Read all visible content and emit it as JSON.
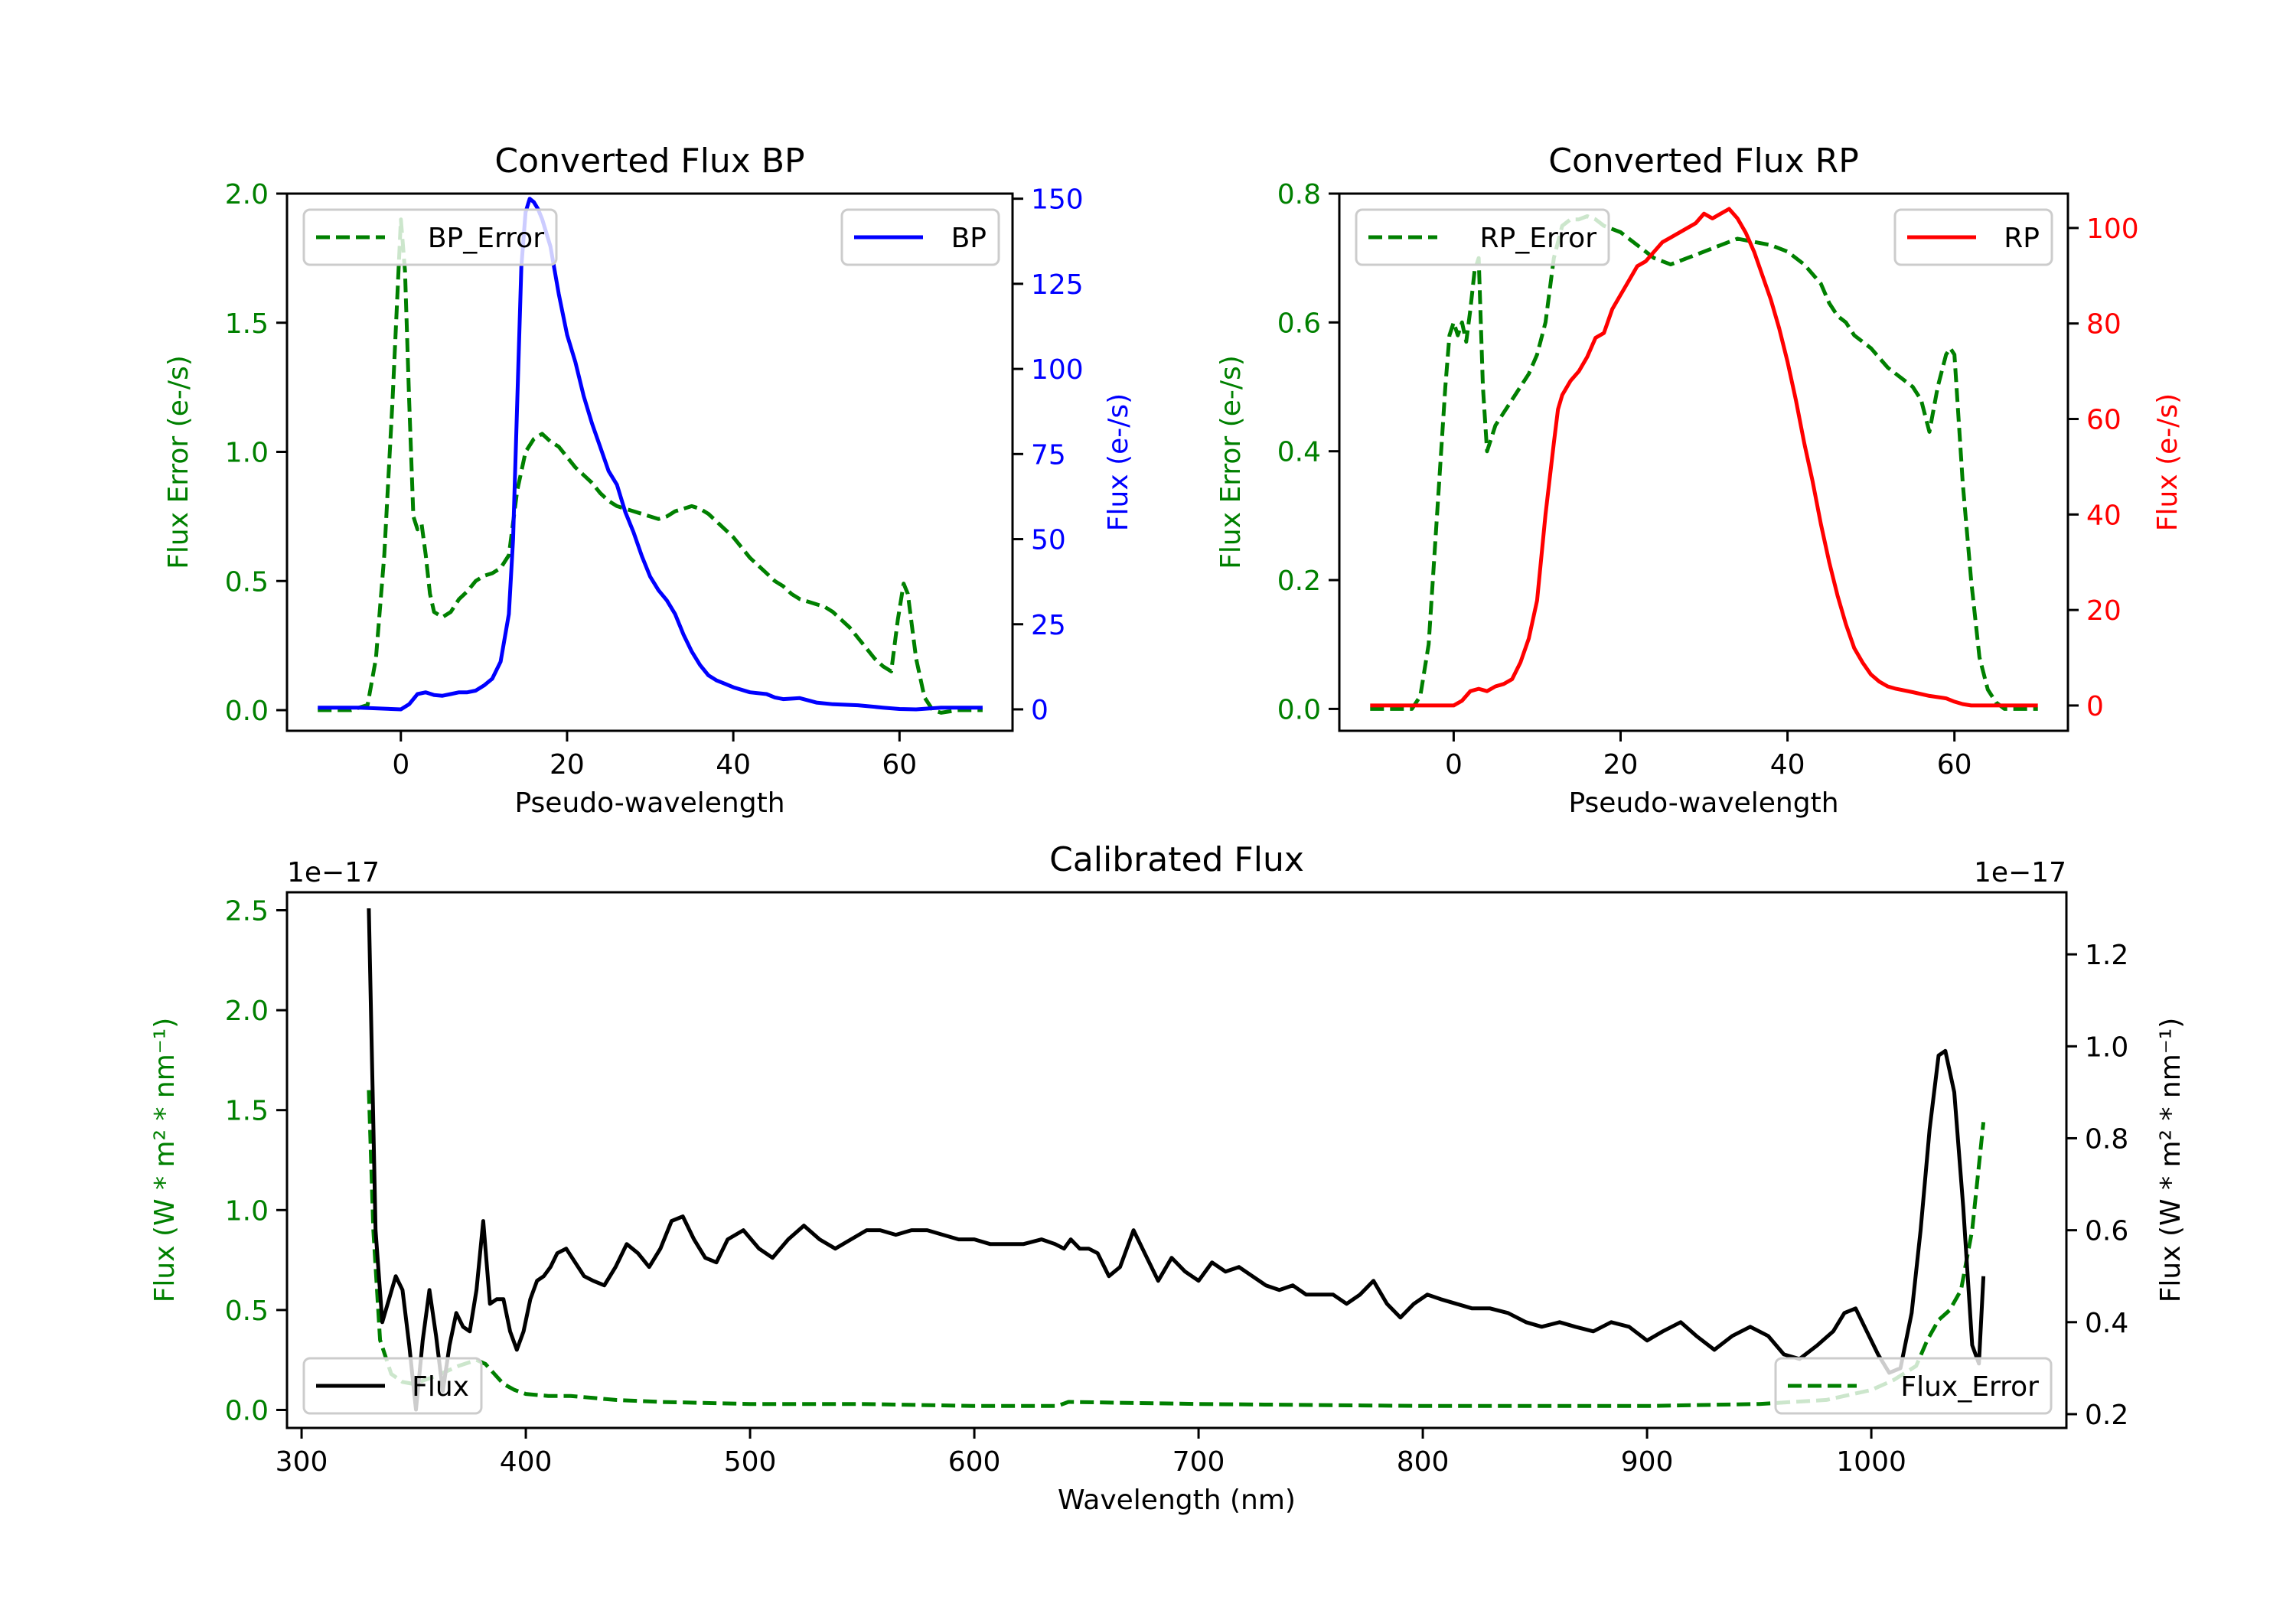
{
  "chart_data": [
    {
      "id": "bp",
      "type": "line",
      "title": "Converted Flux BP",
      "xlabel": "Pseudo-wavelength",
      "ylabel_left": "Flux Error (e-/s)",
      "ylabel_right": "Flux (e-/s)",
      "xlim": [
        -13.7,
        73.6
      ],
      "ylim_left": [
        -0.08,
        2.0
      ],
      "ylim_right": [
        -6.3,
        151.5
      ],
      "xticks": [
        0,
        20,
        40,
        60
      ],
      "yticks_left": [
        "0.0",
        "0.5",
        "1.0",
        "1.5",
        "2.0"
      ],
      "yticks_left_values": [
        0,
        0.5,
        1.0,
        1.5,
        2.0
      ],
      "yticks_right": [
        "0",
        "25",
        "50",
        "75",
        "100",
        "125",
        "150"
      ],
      "yticks_right_values": [
        0,
        25,
        50,
        75,
        100,
        125,
        150
      ],
      "left_color": "#008000",
      "right_color": "#0000ff",
      "legend_left": {
        "label": "BP_Error",
        "placement": "upper-left"
      },
      "legend_right": {
        "label": "BP",
        "placement": "upper-right"
      },
      "series": [
        {
          "name": "BP_Error",
          "axis": "left",
          "style": "dashed",
          "color": "#008000",
          "x": [
            -10,
            -6,
            -4,
            -3,
            -2,
            -1,
            0,
            0.5,
            1,
            1.5,
            2,
            2.5,
            3,
            3.5,
            4,
            5,
            6,
            7,
            8,
            9,
            10,
            11,
            12,
            13,
            14,
            15,
            16,
            17,
            18,
            19,
            20,
            21,
            22,
            23,
            24,
            25,
            26,
            27,
            28,
            29,
            30,
            31,
            32,
            33,
            34,
            35,
            36,
            37,
            38,
            39,
            40,
            41,
            42,
            43,
            44,
            45,
            46,
            47,
            48,
            49,
            50,
            51,
            52,
            53,
            54,
            55,
            56,
            57,
            58,
            59,
            59.8,
            60.5,
            61,
            62,
            63,
            64,
            65,
            67,
            70
          ],
          "values": [
            0.0,
            0.0,
            0.02,
            0.2,
            0.6,
            1.2,
            1.9,
            1.7,
            1.2,
            0.75,
            0.7,
            0.72,
            0.6,
            0.45,
            0.38,
            0.36,
            0.38,
            0.43,
            0.46,
            0.5,
            0.52,
            0.53,
            0.55,
            0.6,
            0.85,
            1.0,
            1.05,
            1.07,
            1.04,
            1.02,
            0.98,
            0.94,
            0.91,
            0.88,
            0.84,
            0.81,
            0.79,
            0.78,
            0.77,
            0.76,
            0.75,
            0.74,
            0.75,
            0.77,
            0.78,
            0.79,
            0.78,
            0.76,
            0.73,
            0.7,
            0.67,
            0.63,
            0.59,
            0.56,
            0.53,
            0.5,
            0.48,
            0.45,
            0.43,
            0.42,
            0.41,
            0.4,
            0.38,
            0.35,
            0.32,
            0.28,
            0.24,
            0.2,
            0.17,
            0.15,
            0.35,
            0.49,
            0.45,
            0.2,
            0.05,
            0.0,
            -0.01,
            0.0,
            0.0
          ]
        },
        {
          "name": "BP",
          "axis": "right",
          "style": "solid",
          "color": "#0000ff",
          "x": [
            -10,
            -5,
            0,
            1,
            2,
            3,
            4,
            5,
            6,
            7,
            8,
            9,
            10,
            11,
            12,
            13,
            13.5,
            14,
            14.5,
            15,
            15.5,
            16,
            16.5,
            17,
            18,
            19,
            20,
            21,
            22,
            23,
            24,
            25,
            26,
            27,
            28,
            29,
            30,
            31,
            32,
            33,
            34,
            35,
            36,
            37,
            38,
            39,
            40,
            42,
            44,
            45,
            46,
            48,
            50,
            52,
            55,
            58,
            60,
            62,
            65,
            70
          ],
          "values": [
            0.5,
            0.5,
            0,
            1.5,
            4.5,
            5,
            4.2,
            4,
            4.5,
            5,
            5,
            5.5,
            7,
            9,
            14,
            28,
            50,
            90,
            130,
            146,
            150,
            149,
            147,
            144,
            136,
            122,
            110,
            102,
            92,
            84,
            77,
            70,
            66,
            58,
            52,
            45,
            39,
            35,
            32,
            28,
            22,
            17,
            13,
            10,
            8.5,
            7.5,
            6.5,
            5,
            4.5,
            3.5,
            3,
            3.3,
            2,
            1.5,
            1.2,
            0.5,
            0.1,
            0,
            0.5,
            0.5
          ]
        }
      ]
    },
    {
      "id": "rp",
      "type": "line",
      "title": "Converted Flux RP",
      "xlabel": "Pseudo-wavelength",
      "ylabel_left": "Flux Error (e-/s)",
      "ylabel_right": "Flux (e-/s)",
      "xlim": [
        -13.7,
        73.6
      ],
      "ylim_left": [
        -0.034,
        0.8
      ],
      "ylim_right": [
        -5.3,
        107.2
      ],
      "xticks": [
        0,
        20,
        40,
        60
      ],
      "yticks_left": [
        "0.0",
        "0.2",
        "0.4",
        "0.6",
        "0.8"
      ],
      "yticks_left_values": [
        0,
        0.2,
        0.4,
        0.6,
        0.8
      ],
      "yticks_right": [
        "0",
        "20",
        "40",
        "60",
        "80",
        "100"
      ],
      "yticks_right_values": [
        0,
        20,
        40,
        60,
        80,
        100
      ],
      "left_color": "#008000",
      "right_color": "#ff0000",
      "legend_left": {
        "label": "RP_Error",
        "placement": "upper-left"
      },
      "legend_right": {
        "label": "RP",
        "placement": "upper-right"
      },
      "series": [
        {
          "name": "RP_Error",
          "axis": "left",
          "style": "dashed",
          "color": "#008000",
          "x": [
            -10,
            -5,
            -4,
            -3,
            -2,
            -1,
            -0.5,
            0,
            0.5,
            1,
            1.5,
            2,
            2.5,
            3,
            3.5,
            4,
            4.5,
            5,
            6,
            7,
            8,
            9,
            10,
            11,
            12,
            13,
            14,
            15,
            16,
            17,
            18,
            19,
            20,
            22,
            24,
            26,
            28,
            30,
            32,
            34,
            36,
            38,
            40,
            42,
            44,
            45,
            46,
            47,
            48,
            50,
            52,
            53,
            54,
            55,
            56,
            57,
            58,
            59,
            59.5,
            60,
            61,
            62,
            63,
            64,
            65,
            66,
            70
          ],
          "values": [
            0.0,
            0.0,
            0.02,
            0.1,
            0.3,
            0.5,
            0.58,
            0.6,
            0.58,
            0.6,
            0.57,
            0.62,
            0.68,
            0.7,
            0.5,
            0.4,
            0.42,
            0.44,
            0.46,
            0.48,
            0.5,
            0.52,
            0.55,
            0.6,
            0.7,
            0.75,
            0.76,
            0.76,
            0.765,
            0.76,
            0.75,
            0.745,
            0.74,
            0.72,
            0.7,
            0.69,
            0.7,
            0.71,
            0.72,
            0.73,
            0.725,
            0.72,
            0.71,
            0.69,
            0.66,
            0.63,
            0.61,
            0.6,
            0.58,
            0.56,
            0.53,
            0.52,
            0.51,
            0.5,
            0.48,
            0.43,
            0.5,
            0.55,
            0.56,
            0.55,
            0.35,
            0.2,
            0.08,
            0.03,
            0.01,
            0.0,
            0.0
          ]
        },
        {
          "name": "RP",
          "axis": "right",
          "style": "solid",
          "color": "#ff0000",
          "x": [
            -10,
            -5,
            0,
            1,
            2,
            3,
            4,
            5,
            6,
            7,
            8,
            9,
            10,
            11,
            12,
            12.5,
            13,
            14,
            15,
            16,
            17,
            18,
            19,
            20,
            21,
            22,
            23,
            24,
            25,
            26,
            27,
            28,
            29,
            30,
            31,
            32,
            33,
            34,
            35,
            36,
            37,
            38,
            39,
            40,
            41,
            42,
            43,
            44,
            45,
            46,
            47,
            48,
            49,
            50,
            51,
            52,
            53,
            55,
            57,
            59,
            60,
            61,
            62,
            65,
            70
          ],
          "values": [
            0,
            0,
            0,
            1,
            3,
            3.5,
            3,
            4,
            4.5,
            5.5,
            9,
            14,
            22,
            40,
            55,
            62,
            65,
            68,
            70,
            73,
            77,
            78,
            83,
            86,
            89,
            92,
            93,
            95,
            97,
            98,
            99,
            100,
            101,
            103,
            102,
            103,
            104,
            102,
            99,
            95,
            90,
            85,
            79,
            72,
            64,
            55,
            47,
            38,
            30,
            23,
            17,
            12,
            9,
            6.5,
            5,
            4,
            3.5,
            2.8,
            2,
            1.5,
            0.8,
            0.3,
            0,
            0,
            0
          ]
        }
      ]
    },
    {
      "id": "cal",
      "type": "line",
      "title": "Calibrated Flux",
      "xlabel": "Wavelength (nm)",
      "ylabel_left": "Flux (W * m² * nm⁻¹)",
      "ylabel_right": "Flux (W * m² * nm⁻¹)",
      "left_offset_text": "1e−17",
      "right_offset_text": "1e−17",
      "xlim": [
        293.5,
        1087
      ],
      "ylim_left": [
        -0.09,
        2.59
      ],
      "ylim_right": [
        0.17,
        1.335
      ],
      "xticks": [
        300,
        400,
        500,
        600,
        700,
        800,
        900,
        1000
      ],
      "yticks_left": [
        "0.0",
        "0.5",
        "1.0",
        "1.5",
        "2.0",
        "2.5"
      ],
      "yticks_left_values": [
        0,
        0.5,
        1.0,
        1.5,
        2.0,
        2.5
      ],
      "yticks_right": [
        "0.2",
        "0.4",
        "0.6",
        "0.8",
        "1.0",
        "1.2"
      ],
      "yticks_right_values": [
        0.2,
        0.4,
        0.6,
        0.8,
        1.0,
        1.2
      ],
      "left_color": "#008000",
      "right_color": "#000000",
      "legend_left": {
        "label": "Flux",
        "placement": "lower-left"
      },
      "legend_right": {
        "label": "Flux_Error",
        "placement": "lower-right"
      },
      "series": [
        {
          "name": "Flux_Error",
          "axis": "left",
          "style": "dashed",
          "color": "#008000",
          "x": [
            330,
            332,
            335,
            340,
            345,
            350,
            360,
            370,
            378,
            382,
            386,
            390,
            395,
            400,
            410,
            420,
            430,
            440,
            460,
            500,
            550,
            600,
            630,
            637,
            642,
            700,
            800,
            900,
            950,
            980,
            1000,
            1010,
            1020,
            1025,
            1030,
            1035,
            1040,
            1045,
            1050
          ],
          "values": [
            1.6,
            0.9,
            0.35,
            0.18,
            0.14,
            0.13,
            0.17,
            0.22,
            0.25,
            0.23,
            0.18,
            0.13,
            0.1,
            0.08,
            0.07,
            0.07,
            0.06,
            0.05,
            0.04,
            0.03,
            0.03,
            0.02,
            0.02,
            0.02,
            0.04,
            0.03,
            0.02,
            0.02,
            0.03,
            0.05,
            0.1,
            0.15,
            0.22,
            0.35,
            0.45,
            0.5,
            0.6,
            0.9,
            1.44
          ]
        },
        {
          "name": "Flux",
          "axis": "right",
          "style": "solid",
          "color": "#000000",
          "x": [
            330,
            333,
            336,
            339,
            342,
            345,
            348,
            351,
            354,
            357,
            360,
            363,
            366,
            369,
            372,
            375,
            378,
            381,
            384,
            387,
            390,
            393,
            396,
            399,
            402,
            405,
            408,
            411,
            414,
            418,
            422,
            426,
            430,
            435,
            440,
            445,
            450,
            455,
            460,
            465,
            470,
            475,
            480,
            485,
            490,
            497,
            504,
            510,
            517,
            524,
            531,
            538,
            545,
            552,
            558,
            565,
            572,
            579,
            586,
            593,
            600,
            607,
            615,
            622,
            630,
            636,
            640,
            643,
            647,
            651,
            655,
            660,
            665,
            671,
            676,
            682,
            688,
            694,
            700,
            706,
            712,
            718,
            724,
            730,
            736,
            742,
            748,
            754,
            760,
            766,
            772,
            778,
            784,
            790,
            796,
            802,
            808,
            815,
            822,
            830,
            838,
            846,
            853,
            861,
            868,
            876,
            884,
            892,
            900,
            907,
            915,
            922,
            930,
            938,
            946,
            954,
            961,
            968,
            976,
            983,
            988,
            993,
            998,
            1003,
            1008,
            1013,
            1018,
            1022,
            1026,
            1030,
            1033,
            1037,
            1041,
            1045,
            1048,
            1050
          ],
          "values": [
            1.3,
            0.6,
            0.4,
            0.45,
            0.5,
            0.47,
            0.35,
            0.21,
            0.36,
            0.47,
            0.37,
            0.25,
            0.35,
            0.42,
            0.39,
            0.38,
            0.47,
            0.62,
            0.44,
            0.45,
            0.45,
            0.38,
            0.34,
            0.38,
            0.45,
            0.49,
            0.5,
            0.52,
            0.55,
            0.56,
            0.53,
            0.5,
            0.49,
            0.48,
            0.52,
            0.57,
            0.55,
            0.52,
            0.56,
            0.62,
            0.63,
            0.58,
            0.54,
            0.53,
            0.58,
            0.6,
            0.56,
            0.54,
            0.58,
            0.61,
            0.58,
            0.56,
            0.58,
            0.6,
            0.6,
            0.59,
            0.6,
            0.6,
            0.59,
            0.58,
            0.58,
            0.57,
            0.57,
            0.57,
            0.58,
            0.57,
            0.56,
            0.58,
            0.56,
            0.56,
            0.55,
            0.5,
            0.52,
            0.6,
            0.55,
            0.49,
            0.54,
            0.51,
            0.49,
            0.53,
            0.51,
            0.52,
            0.5,
            0.48,
            0.47,
            0.48,
            0.46,
            0.46,
            0.46,
            0.44,
            0.46,
            0.49,
            0.44,
            0.41,
            0.44,
            0.46,
            0.45,
            0.44,
            0.43,
            0.43,
            0.42,
            0.4,
            0.39,
            0.4,
            0.39,
            0.38,
            0.4,
            0.39,
            0.36,
            0.38,
            0.4,
            0.37,
            0.34,
            0.37,
            0.39,
            0.37,
            0.33,
            0.32,
            0.35,
            0.38,
            0.42,
            0.43,
            0.38,
            0.33,
            0.29,
            0.3,
            0.42,
            0.6,
            0.82,
            0.98,
            0.99,
            0.9,
            0.65,
            0.35,
            0.31,
            0.5
          ]
        }
      ]
    }
  ]
}
